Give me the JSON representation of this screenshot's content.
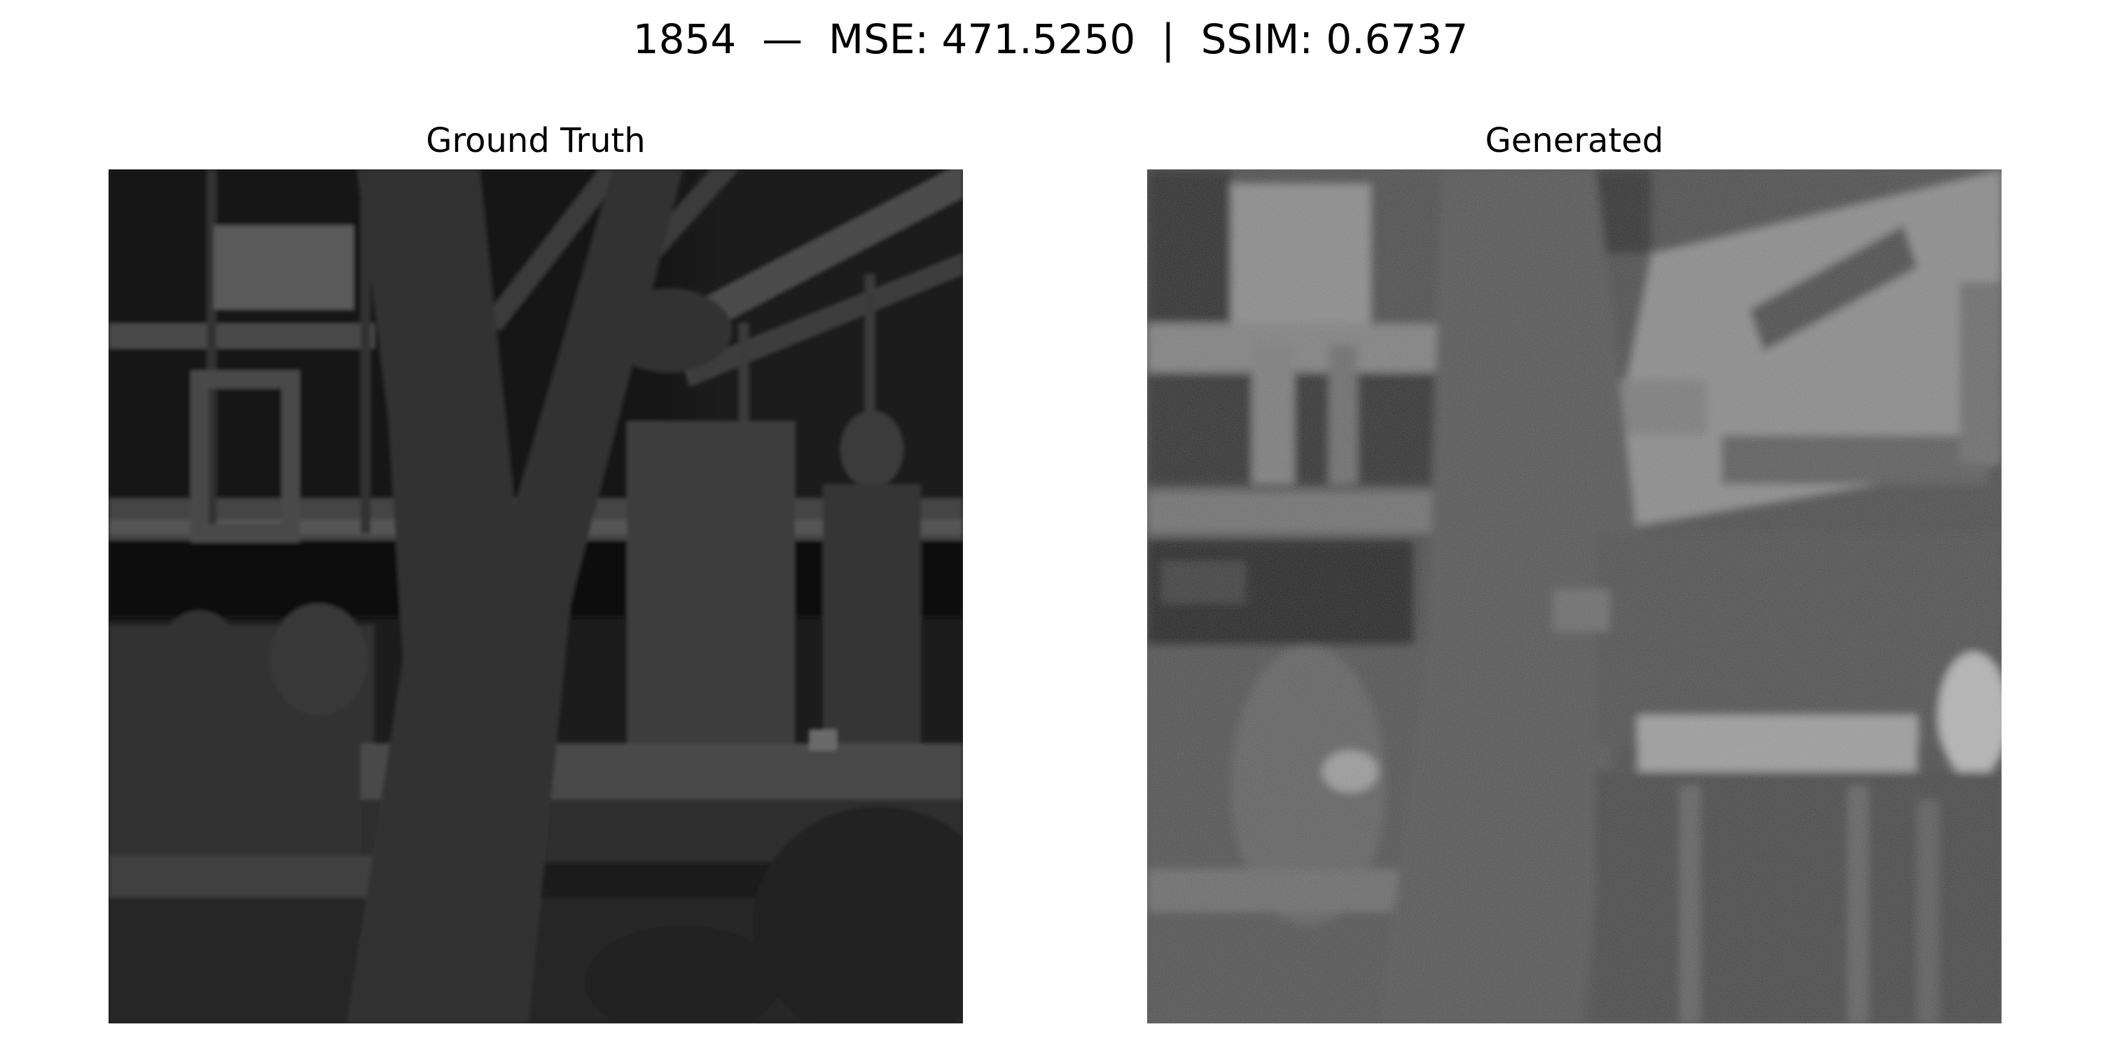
{
  "figure": {
    "title": "1854  —  MSE: 471.5250  |  SSIM: 0.6737"
  },
  "panels": [
    {
      "title": "Ground Truth"
    },
    {
      "title": "Generated"
    }
  ]
}
